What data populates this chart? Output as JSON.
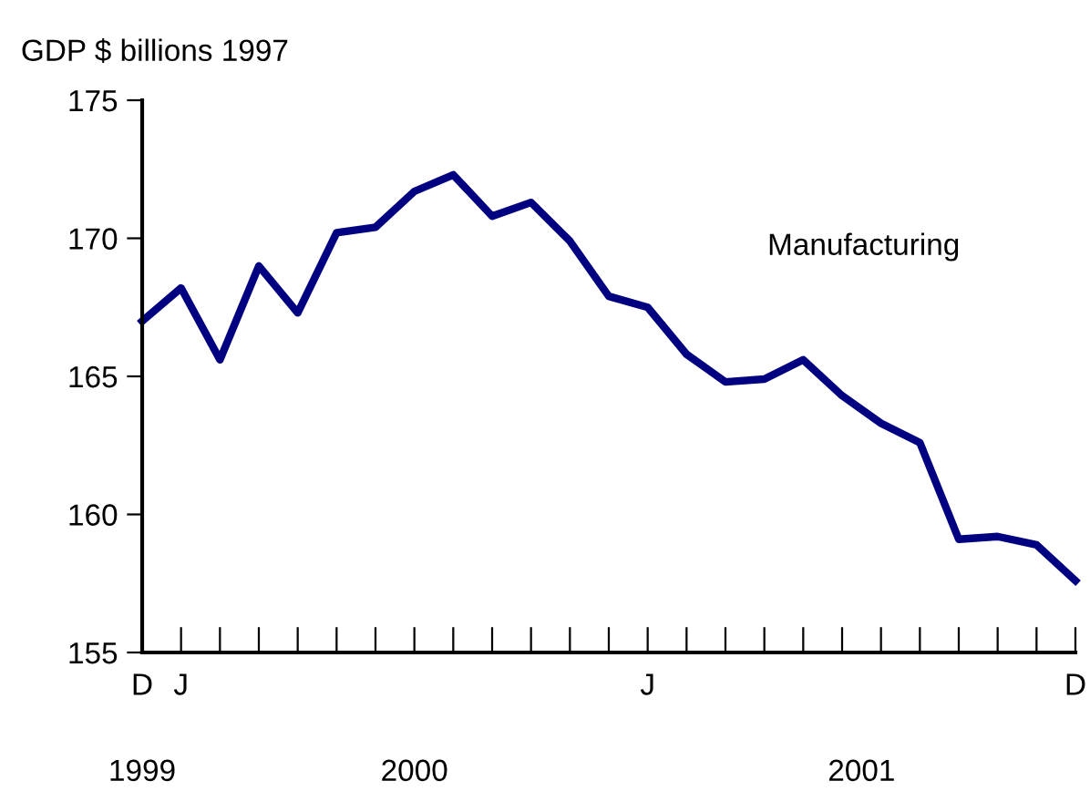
{
  "chart_data": {
    "type": "line",
    "ylabel": "GDP $ billions 1997",
    "categories": [
      "D",
      "J",
      null,
      null,
      null,
      null,
      null,
      null,
      null,
      null,
      null,
      null,
      null,
      "J",
      null,
      null,
      null,
      null,
      null,
      null,
      null,
      null,
      null,
      null,
      "D"
    ],
    "series": [
      {
        "name": "Manufacturing",
        "color": "#000080",
        "values": [
          167.0,
          168.2,
          165.6,
          169.0,
          167.3,
          170.2,
          170.4,
          171.7,
          172.3,
          170.8,
          171.3,
          169.9,
          167.9,
          167.5,
          165.8,
          164.8,
          164.9,
          165.6,
          164.3,
          163.3,
          162.6,
          159.1,
          159.2,
          158.9,
          157.6
        ]
      }
    ],
    "ylim": [
      155,
      175
    ],
    "yticks": [
      155,
      160,
      165,
      170,
      175
    ],
    "annotations": [
      "1999",
      "2000",
      "2001"
    ],
    "grid": false,
    "legend": false,
    "marker": "none",
    "line_style": "solid"
  }
}
